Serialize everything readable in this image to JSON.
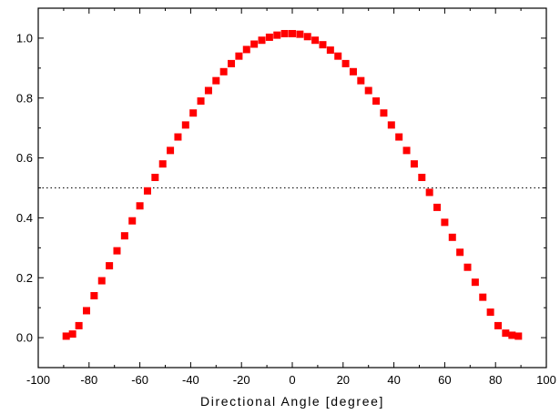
{
  "chart_data": {
    "type": "scatter",
    "title": "",
    "xlabel": "Directional Angle [degree]",
    "ylabel": "",
    "xlim": [
      -100,
      100
    ],
    "ylim": [
      -0.1,
      1.1
    ],
    "xticks": [
      -100,
      -80,
      -60,
      -40,
      -20,
      0,
      20,
      40,
      60,
      80,
      100
    ],
    "yticks": [
      0.0,
      0.2,
      0.4,
      0.6,
      0.8,
      1.0
    ],
    "xtick_labels": [
      "-100",
      "-80",
      "-60",
      "-40",
      "-20",
      "0",
      "20",
      "40",
      "60",
      "80",
      "100"
    ],
    "ytick_labels": [
      "0.0",
      "0.2",
      "0.4",
      "0.6",
      "0.8",
      "1.0"
    ],
    "grid": false,
    "legend": "none",
    "reference_line": {
      "y": 0.5,
      "style": "dotted",
      "color": "#000000"
    },
    "marker": {
      "shape": "square",
      "color": "#ff0000"
    },
    "series": [
      {
        "x": [
          -89,
          -86.5,
          -84,
          -81,
          -78,
          -75,
          -72,
          -69,
          -66,
          -63,
          -60,
          -57,
          -54,
          -51,
          -48,
          -45,
          -42,
          -39,
          -36,
          -33,
          -30,
          -27,
          -24,
          -21,
          -18,
          -15,
          -12,
          -9,
          -6,
          -3,
          0,
          3,
          6,
          9,
          12,
          15,
          18,
          21,
          24,
          27,
          30,
          33,
          36,
          39,
          42,
          45,
          48,
          51,
          54,
          57,
          60,
          63,
          66,
          69,
          72,
          75,
          78,
          81,
          84,
          86.5,
          89
        ],
        "y": [
          0.005,
          0.012,
          0.04,
          0.09,
          0.14,
          0.19,
          0.24,
          0.29,
          0.34,
          0.39,
          0.44,
          0.49,
          0.535,
          0.58,
          0.625,
          0.67,
          0.71,
          0.75,
          0.79,
          0.825,
          0.858,
          0.888,
          0.915,
          0.94,
          0.962,
          0.98,
          0.993,
          1.003,
          1.01,
          1.015,
          1.015,
          1.013,
          1.005,
          0.993,
          0.978,
          0.96,
          0.94,
          0.915,
          0.888,
          0.858,
          0.825,
          0.79,
          0.75,
          0.71,
          0.67,
          0.625,
          0.58,
          0.535,
          0.485,
          0.435,
          0.385,
          0.335,
          0.285,
          0.235,
          0.185,
          0.135,
          0.085,
          0.04,
          0.015,
          0.008,
          0.005
        ]
      }
    ]
  }
}
